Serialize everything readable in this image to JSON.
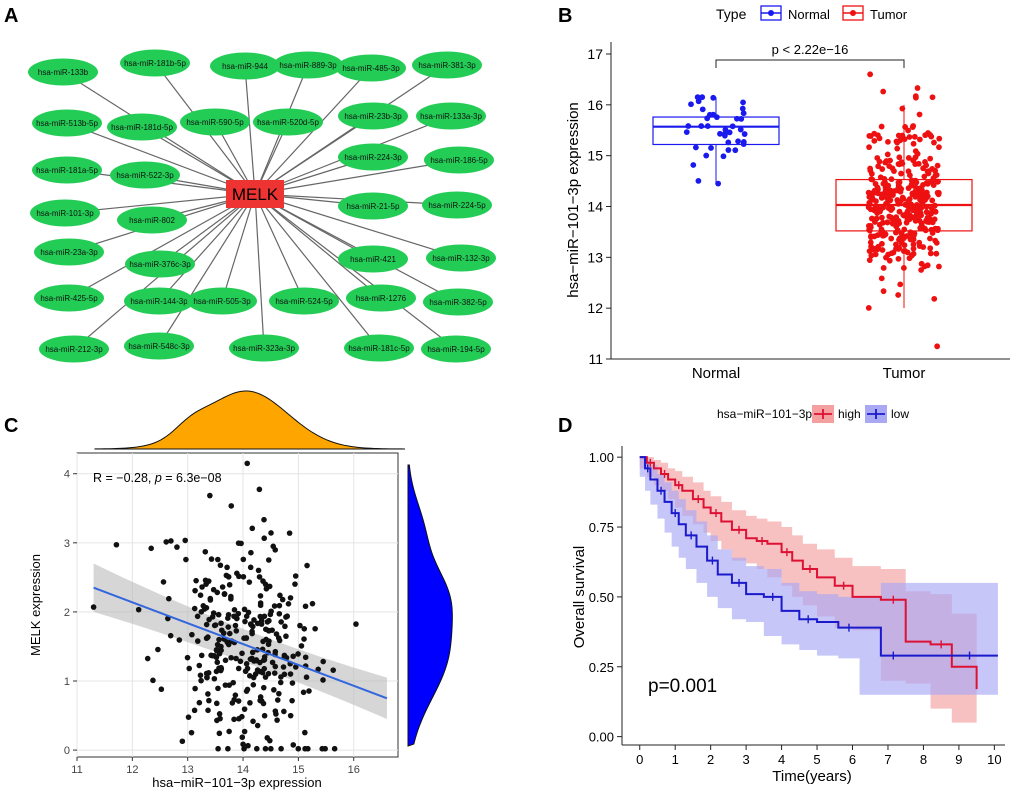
{
  "panels": {
    "a": {
      "letter": "A"
    },
    "b": {
      "letter": "B"
    },
    "c": {
      "letter": "C"
    },
    "d": {
      "letter": "D"
    }
  },
  "chart_data": [
    {
      "panel": "A",
      "type": "network",
      "hub": "MELK",
      "nodes": [
        "hsa-miR-133b",
        "hsa-miR-181b-5p",
        "hsa-miR-944",
        "hsa-miR-889-3p",
        "hsa-miR-485-3p",
        "hsa-miR-381-3p",
        "hsa-miR-513b-5p",
        "hsa-miR-181d-5p",
        "hsa-miR-590-5p",
        "hsa-miR-520d-5p",
        "hsa-miR-23b-3p",
        "hsa-miR-133a-3p",
        "hsa-miR-181a-5p",
        "hsa-miR-522-3p",
        "hsa-miR-224-3p",
        "hsa-miR-186-5p",
        "hsa-miR-101-3p",
        "hsa-miR-802",
        "hsa-miR-21-5p",
        "hsa-miR-224-5p",
        "hsa-miR-23a-3p",
        "hsa-miR-376c-3p",
        "hsa-miR-421",
        "hsa-miR-132-3p",
        "hsa-miR-425-5p",
        "hsa-miR-144-3p",
        "hsa-miR-505-3p",
        "hsa-miR-524-5p",
        "hsa-miR-1276",
        "hsa-miR-382-5p",
        "hsa-miR-212-3p",
        "hsa-miR-548c-3p",
        "hsa-miR-323a-3p",
        "hsa-miR-181c-5p",
        "hsa-miR-194-5p"
      ],
      "colors": {
        "node": "#22cc55",
        "hub": "#ee3333",
        "edge": "#666666"
      }
    },
    {
      "panel": "B",
      "type": "boxplot",
      "title": "",
      "legend_title": "Type",
      "categories": [
        "Normal",
        "Tumor"
      ],
      "series": [
        {
          "name": "Normal",
          "color": "#1a1aee",
          "min": 14.45,
          "q1": 15.22,
          "median": 15.57,
          "q3": 15.76,
          "max": 16.15,
          "n": 40,
          "range": [
            14.45,
            16.15
          ]
        },
        {
          "name": "Tumor",
          "color": "#ee1111",
          "min": 12.0,
          "q1": 13.52,
          "median": 14.03,
          "q3": 14.53,
          "max": 16.0,
          "n": 370,
          "range": [
            11.25,
            16.6
          ]
        }
      ],
      "annotation": "p < 2.22e−16",
      "ylabel": "hsa−miR−101−3p expression",
      "xlabel": "",
      "ylim": [
        11,
        17
      ],
      "yticks": [
        11,
        12,
        13,
        14,
        15,
        16,
        17
      ]
    },
    {
      "panel": "C",
      "type": "scatter",
      "xlabel": "hsa−miR−101−3p expression",
      "ylabel": "MELK expression",
      "xlim": [
        11,
        16.8
      ],
      "ylim": [
        -0.1,
        4.3
      ],
      "xticks": [
        11,
        12,
        13,
        14,
        15,
        16
      ],
      "yticks": [
        0,
        1,
        2,
        3,
        4
      ],
      "stat_prefix": "R = −0.28, ",
      "stat_p": "p",
      "stat_suffix": " = 6.3e−08",
      "fit": {
        "x": [
          11.3,
          16.6
        ],
        "y": [
          2.35,
          0.75
        ],
        "band_lo": [
          2.0,
          0.45
        ],
        "band_hi": [
          2.7,
          1.05
        ]
      },
      "n": 320,
      "colors": {
        "point": "#111111",
        "line": "#3366dd",
        "band": "#bbbbbb",
        "xdensity": "#ffa500",
        "ydensity": "#0000ff"
      }
    },
    {
      "panel": "D",
      "type": "line",
      "legend_title": "hsa−miR−101−3p",
      "xlabel": "Time(years)",
      "ylabel": "Overall survival",
      "xlim": [
        -0.5,
        10.3
      ],
      "ylim": [
        -0.03,
        1.04
      ],
      "xticks": [
        0,
        1,
        2,
        3,
        4,
        5,
        6,
        7,
        8,
        9,
        10
      ],
      "yticks": [
        0.0,
        0.25,
        0.5,
        0.75,
        1.0
      ],
      "ytick_labels": [
        "0.00",
        "0.25",
        "0.50",
        "0.75",
        "1.00"
      ],
      "annotation": "p=0.001",
      "series": [
        {
          "name": "high",
          "color": "#dd1133",
          "band": "#f4a0a0",
          "x": [
            0,
            0.2,
            0.4,
            0.6,
            0.8,
            1.0,
            1.2,
            1.5,
            1.8,
            2.0,
            2.3,
            2.6,
            3.0,
            3.3,
            3.6,
            4.0,
            4.3,
            4.6,
            5.0,
            5.5,
            6.0,
            6.8,
            7.5,
            8.2,
            8.8,
            9.5
          ],
          "y": [
            1.0,
            0.98,
            0.96,
            0.94,
            0.92,
            0.9,
            0.88,
            0.85,
            0.82,
            0.8,
            0.77,
            0.74,
            0.71,
            0.7,
            0.69,
            0.66,
            0.63,
            0.6,
            0.57,
            0.54,
            0.5,
            0.49,
            0.34,
            0.33,
            0.25,
            0.17
          ],
          "lo": [
            1.0,
            0.96,
            0.93,
            0.9,
            0.88,
            0.85,
            0.82,
            0.79,
            0.76,
            0.73,
            0.7,
            0.67,
            0.63,
            0.62,
            0.6,
            0.57,
            0.54,
            0.5,
            0.47,
            0.43,
            0.39,
            0.38,
            0.2,
            0.19,
            0.1,
            0.05
          ],
          "hi": [
            1.0,
            1.0,
            0.99,
            0.98,
            0.96,
            0.95,
            0.93,
            0.91,
            0.88,
            0.86,
            0.84,
            0.81,
            0.79,
            0.78,
            0.77,
            0.75,
            0.72,
            0.69,
            0.67,
            0.64,
            0.61,
            0.6,
            0.52,
            0.51,
            0.44,
            0.39
          ]
        },
        {
          "name": "low",
          "color": "#1a1acc",
          "band": "#a8a8f4",
          "x": [
            0,
            0.15,
            0.3,
            0.5,
            0.7,
            0.9,
            1.1,
            1.3,
            1.6,
            1.9,
            2.2,
            2.6,
            3.0,
            3.5,
            4.0,
            4.5,
            5.0,
            5.6,
            6.2,
            6.8,
            7.5,
            8.5,
            10.1
          ],
          "y": [
            1.0,
            0.96,
            0.92,
            0.88,
            0.84,
            0.8,
            0.76,
            0.72,
            0.68,
            0.63,
            0.58,
            0.55,
            0.51,
            0.5,
            0.45,
            0.42,
            0.41,
            0.39,
            0.39,
            0.29,
            0.29,
            0.29,
            0.29
          ],
          "lo": [
            1.0,
            0.93,
            0.88,
            0.83,
            0.78,
            0.73,
            0.68,
            0.64,
            0.6,
            0.55,
            0.5,
            0.46,
            0.42,
            0.41,
            0.36,
            0.33,
            0.31,
            0.29,
            0.28,
            0.15,
            0.15,
            0.15,
            0.15
          ],
          "hi": [
            1.0,
            0.99,
            0.97,
            0.94,
            0.91,
            0.88,
            0.85,
            0.81,
            0.77,
            0.72,
            0.67,
            0.64,
            0.61,
            0.6,
            0.55,
            0.52,
            0.51,
            0.5,
            0.5,
            0.55,
            0.55,
            0.55,
            0.55
          ]
        }
      ]
    }
  ]
}
